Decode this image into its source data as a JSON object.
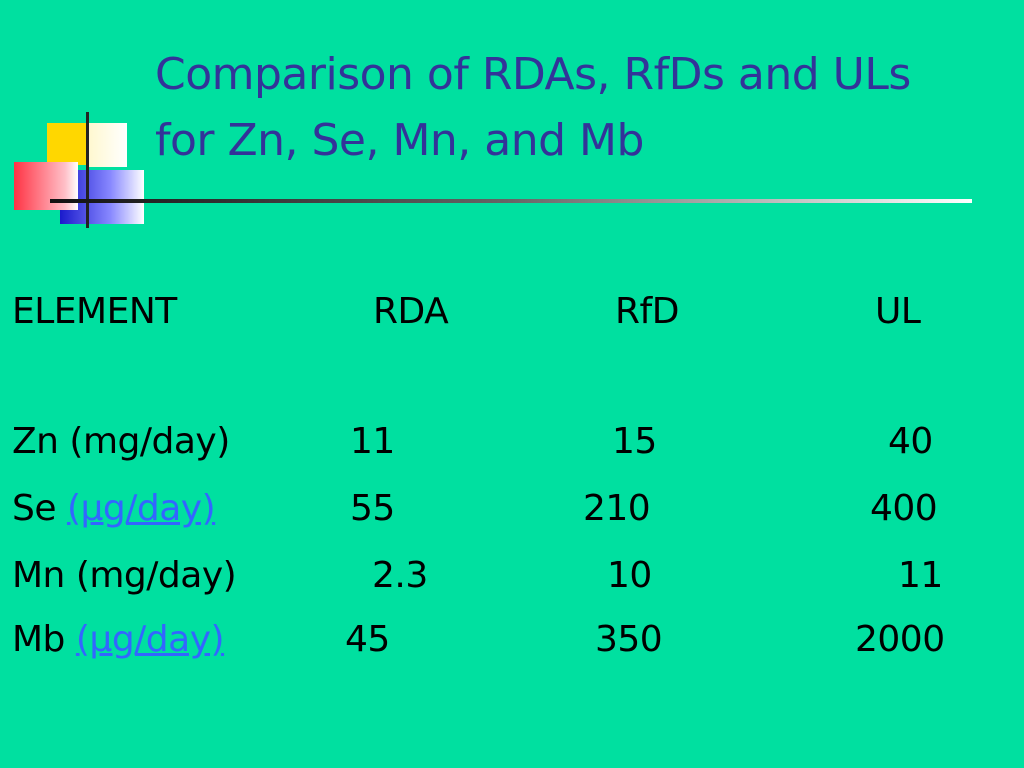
{
  "title": "Comparison of RDAs, RfDs and ULs for Zn, Se, Mn, and Mb",
  "table": {
    "header": [
      "ELEMENT",
      "RDA",
      "RfD",
      "UL"
    ],
    "rows": [
      {
        "element": "Zn (mg/day)",
        "rda": 11,
        "rfd": 15,
        "ul": 40
      },
      {
        "element": "Se",
        "unit": "(µg/day)",
        "rda": 55,
        "rfd": 210,
        "ul": 400
      },
      {
        "element": "Mn (mg/day)",
        "rda": 2.3,
        "rfd": 10,
        "ul": 11
      },
      {
        "element": "Mb",
        "unit": "(µg/day)",
        "rda": 45,
        "rfd": 350,
        "ul": 2000
      }
    ]
  }
}
